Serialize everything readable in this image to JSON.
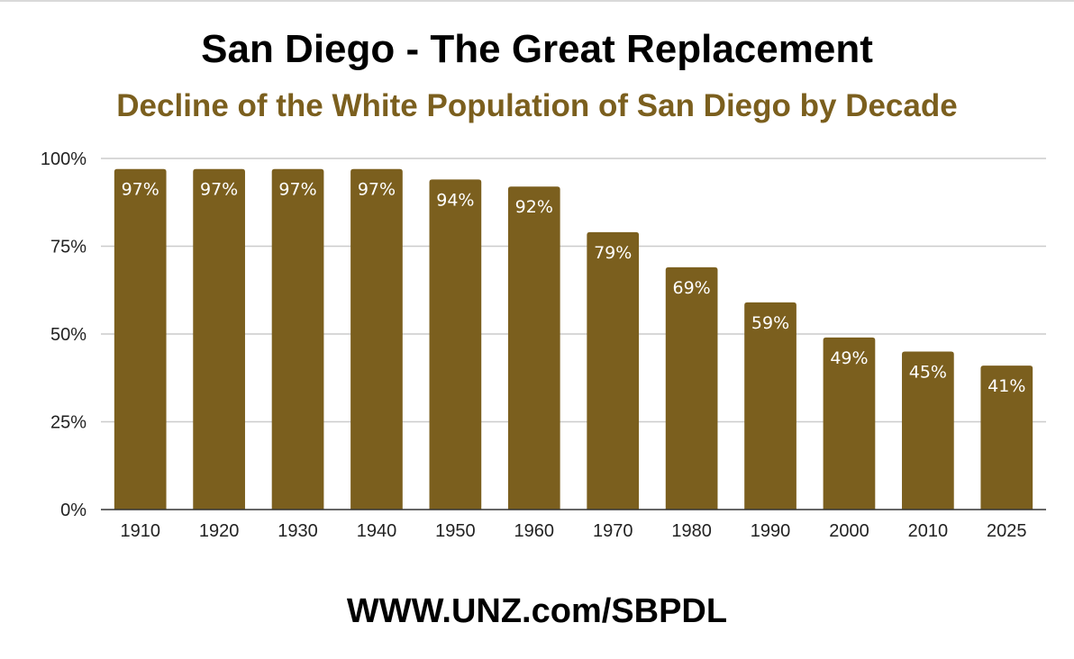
{
  "header": {
    "title": "San Diego - The Great Replacement",
    "subtitle": "Decline of the White Population of San Diego by Decade"
  },
  "footer": {
    "text": "WWW.UNZ.com/SBPDL"
  },
  "colors": {
    "bar": "#7b5f1e",
    "subtitle": "#7b5f1e",
    "grid": "#cccccc",
    "axis": "#333333"
  },
  "chart_data": {
    "type": "bar",
    "categories": [
      "1910",
      "1920",
      "1930",
      "1940",
      "1950",
      "1960",
      "1970",
      "1980",
      "1990",
      "2000",
      "2010",
      "2025"
    ],
    "values": [
      97,
      97,
      97,
      97,
      94,
      92,
      79,
      69,
      59,
      49,
      45,
      41
    ],
    "data_labels": [
      "97%",
      "97%",
      "97%",
      "97%",
      "94%",
      "92%",
      "79%",
      "69%",
      "59%",
      "49%",
      "45%",
      "41%"
    ],
    "ylim": [
      0,
      100
    ],
    "yticks": [
      0,
      25,
      50,
      75,
      100
    ],
    "ytick_labels": [
      "0%",
      "25%",
      "50%",
      "75%",
      "100%"
    ],
    "xlabel": "",
    "ylabel": "",
    "grid": true,
    "legend": "none"
  }
}
